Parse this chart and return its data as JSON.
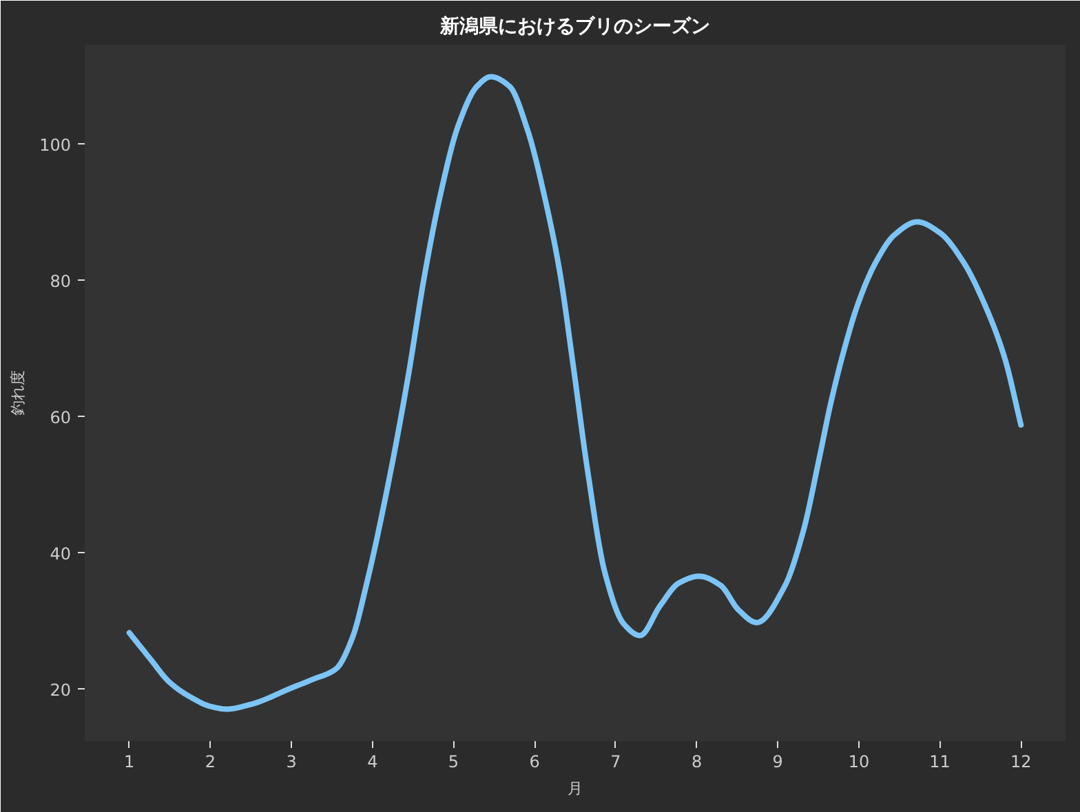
{
  "chart_data": {
    "type": "line",
    "title": "新潟県におけるブリのシーズン",
    "xlabel": "月",
    "ylabel": "釣れ度",
    "x": [
      1.0,
      1.25,
      1.5,
      1.75,
      2.0,
      2.2,
      2.5,
      3.0,
      3.25,
      3.55,
      3.75,
      3.93,
      4.21,
      4.44,
      4.64,
      4.84,
      5.06,
      5.29,
      5.46,
      5.69,
      5.91,
      6.14,
      6.31,
      6.48,
      6.65,
      6.87,
      7.1,
      7.3,
      7.55,
      7.78,
      8.03,
      8.29,
      8.52,
      8.74,
      9.08,
      9.31,
      9.51,
      9.65,
      9.82,
      9.99,
      10.21,
      10.44,
      10.72,
      11.0,
      11.29,
      11.57,
      11.8,
      12.0
    ],
    "series": [
      {
        "color": "#7cc4f5",
        "values": [
          28.3,
          24.6,
          21.0,
          18.9,
          17.5,
          17.1,
          17.8,
          20.2,
          21.4,
          23.0,
          27.5,
          35.6,
          51.1,
          65.9,
          80.6,
          92.7,
          102.8,
          108.5,
          109.9,
          108.5,
          102.2,
          91.4,
          81.3,
          67.2,
          52.4,
          37.0,
          29.6,
          27.9,
          32.3,
          35.6,
          36.6,
          35.3,
          31.6,
          29.8,
          35.0,
          43.0,
          53.8,
          61.8,
          69.9,
          76.6,
          82.7,
          86.7,
          88.6,
          87.0,
          82.7,
          76.0,
          68.6,
          58.8
        ]
      }
    ],
    "xlim": [
      0.45,
      12.55
    ],
    "ylim": [
      12.4,
      114.6
    ],
    "xticks": [
      1,
      2,
      3,
      4,
      5,
      6,
      7,
      8,
      9,
      10,
      11,
      12
    ],
    "yticks": [
      20,
      40,
      60,
      80,
      100
    ],
    "grid": false,
    "line_style": "solid"
  }
}
